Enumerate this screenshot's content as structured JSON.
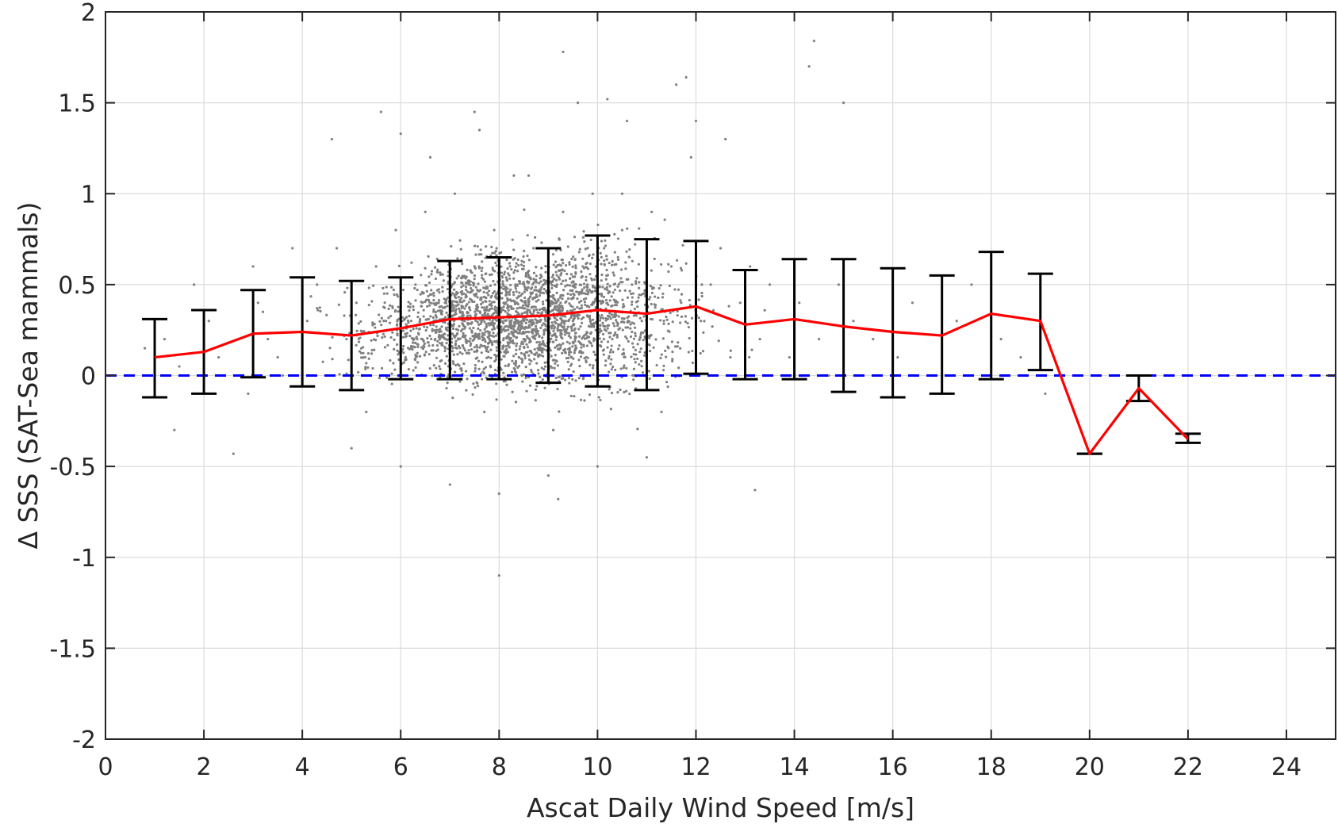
{
  "chart_data": {
    "type": "scatter",
    "title": "",
    "xlabel": "Ascat Daily Wind Speed [m/s]",
    "ylabel": "Δ SSS (SAT-Sea mammals)",
    "xlim": [
      0,
      25
    ],
    "ylim": [
      -2,
      2
    ],
    "xticks": [
      0,
      2,
      4,
      6,
      8,
      10,
      12,
      14,
      16,
      18,
      20,
      22,
      24
    ],
    "yticks": [
      -2,
      -1.5,
      -1,
      -0.5,
      0,
      0.5,
      1,
      1.5,
      2
    ],
    "xtick_labels": [
      "0",
      "2",
      "4",
      "6",
      "8",
      "10",
      "12",
      "14",
      "16",
      "18",
      "20",
      "22",
      "24"
    ],
    "ytick_labels": [
      "-2",
      "-1.5",
      "-1",
      "-0.5",
      "0",
      "0.5",
      "1",
      "1.5",
      "2"
    ],
    "grid": true,
    "series": [
      {
        "kind": "scatter",
        "color": "#808080",
        "note_visible": false,
        "x": [
          0.8,
          1.2,
          1.5,
          1.4,
          2.1,
          2.3,
          2.6,
          1.8,
          3.1,
          3.3,
          3.6,
          3.8,
          2.9,
          3.0,
          3.2,
          3.5,
          4.1,
          4.3,
          4.5,
          4.7,
          4.9,
          5.1,
          5.3,
          5.5,
          5.7,
          5.9,
          6.1,
          6.3,
          6.5,
          6.7,
          6.9,
          7.1,
          7.3,
          7.5,
          7.7,
          7.9,
          8.1,
          8.3,
          8.5,
          8.7,
          8.9,
          9.1,
          9.3,
          9.5,
          9.7,
          9.9,
          10.1,
          10.3,
          10.5,
          10.7,
          10.9,
          11.1,
          11.3,
          11.5,
          11.7,
          11.9,
          12.1,
          12.3,
          12.5,
          12.7,
          12.9,
          13.1,
          13.3,
          13.5,
          13.7,
          13.9,
          14.1,
          14.3,
          14.5,
          14.7,
          14.9,
          15.2,
          15.6,
          16.1,
          16.4,
          16.8,
          17.3,
          17.6,
          18.2,
          18.6,
          19.1,
          5.0,
          6.0,
          7.0,
          8.0,
          9.0,
          10.0,
          11.0,
          4.6,
          5.6,
          6.6,
          7.6,
          8.6,
          9.6,
          10.6,
          11.6,
          12.6,
          9.3,
          10.2,
          14.4,
          14.3,
          15.0,
          11.8,
          8.0,
          13.2,
          9.2,
          12.0,
          10.5,
          6.0,
          7.5
        ],
        "y": [
          0.15,
          0.2,
          0.05,
          -0.3,
          0.3,
          0.1,
          -0.43,
          0.5,
          0.4,
          0.2,
          0.0,
          0.7,
          -0.1,
          0.6,
          0.35,
          0.1,
          0.3,
          0.5,
          0.0,
          0.7,
          0.2,
          0.4,
          -0.2,
          0.6,
          0.3,
          0.8,
          0.1,
          0.5,
          0.9,
          0.2,
          0.4,
          1.0,
          0.3,
          0.6,
          -0.2,
          0.8,
          0.4,
          1.1,
          0.2,
          0.7,
          0.5,
          -0.3,
          0.9,
          0.3,
          0.6,
          1.0,
          0.4,
          0.2,
          0.8,
          0.5,
          0.3,
          0.9,
          -0.2,
          0.6,
          0.4,
          1.2,
          0.3,
          0.5,
          0.7,
          0.1,
          0.4,
          0.6,
          0.2,
          0.5,
          0.3,
          0.1,
          0.4,
          0.3,
          0.2,
          0.0,
          0.5,
          0.3,
          0.2,
          0.1,
          0.4,
          0.0,
          0.3,
          0.5,
          0.2,
          0.1,
          -0.1,
          -0.4,
          -0.5,
          -0.6,
          -0.65,
          -0.55,
          -0.5,
          -0.45,
          1.3,
          1.45,
          1.2,
          1.35,
          1.1,
          1.5,
          1.4,
          1.6,
          1.3,
          1.78,
          1.52,
          1.84,
          1.7,
          1.5,
          1.64,
          -1.1,
          -0.63,
          -0.68,
          1.4,
          1.0,
          1.33,
          1.45
        ]
      },
      {
        "kind": "errorbar",
        "color": "#000000",
        "x": [
          1,
          2,
          3,
          4,
          5,
          6,
          7,
          8,
          9,
          10,
          11,
          12,
          13,
          14,
          15,
          16,
          17,
          18,
          19,
          20,
          21,
          22
        ],
        "upper": [
          0.31,
          0.36,
          0.47,
          0.54,
          0.52,
          0.54,
          0.63,
          0.65,
          0.7,
          0.77,
          0.75,
          0.74,
          0.58,
          0.64,
          0.64,
          0.59,
          0.55,
          0.68,
          0.56,
          -0.43,
          0.0,
          -0.32
        ],
        "lower": [
          -0.12,
          -0.1,
          -0.01,
          -0.06,
          -0.08,
          -0.02,
          -0.02,
          -0.02,
          -0.04,
          -0.06,
          -0.08,
          0.01,
          -0.02,
          -0.02,
          -0.09,
          -0.12,
          -0.1,
          -0.02,
          0.03,
          -0.43,
          -0.14,
          -0.37
        ]
      },
      {
        "kind": "line",
        "color": "#ff0000",
        "x": [
          1,
          2,
          3,
          4,
          5,
          6,
          7,
          8,
          9,
          10,
          11,
          12,
          13,
          14,
          15,
          16,
          17,
          18,
          19,
          20,
          21,
          22
        ],
        "y": [
          0.1,
          0.13,
          0.23,
          0.24,
          0.22,
          0.26,
          0.31,
          0.32,
          0.33,
          0.36,
          0.34,
          0.38,
          0.28,
          0.31,
          0.27,
          0.24,
          0.22,
          0.34,
          0.3,
          -0.43,
          -0.07,
          -0.35
        ]
      },
      {
        "kind": "hline",
        "color": "#0000ff",
        "style": "dashed",
        "y": 0
      }
    ]
  }
}
